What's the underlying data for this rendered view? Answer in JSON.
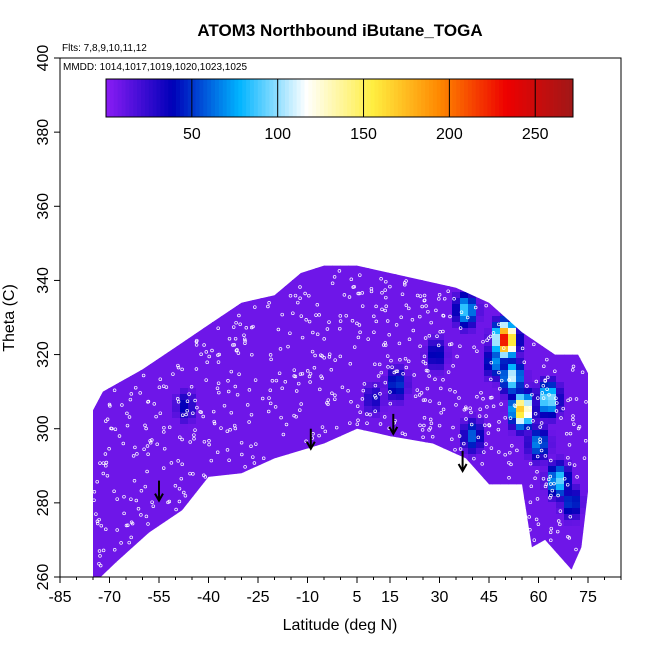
{
  "chart_data": {
    "type": "heatmap",
    "title": "ATOM3 Northbound iButane_TOGA",
    "flights_note": "Flts: 7,8,9,10,11,12",
    "dates_note": "MMDD: 1014,1017,1019,1020,1023,1025",
    "xlabel": "Latitude (deg N)",
    "ylabel": "Theta (C)",
    "xlim": [
      -85,
      85
    ],
    "ylim": [
      260,
      400
    ],
    "x_ticks": [
      -85,
      -70,
      -55,
      -40,
      -25,
      -10,
      5,
      15,
      30,
      45,
      60,
      75
    ],
    "x_tick_labels": [
      "-85",
      "-70",
      "-55",
      "-40",
      "-25",
      "-10",
      "5",
      "15",
      "30",
      "45",
      "60",
      "75"
    ],
    "y_ticks": [
      260,
      280,
      300,
      320,
      340,
      360,
      380,
      400
    ],
    "y_tick_labels": [
      "260",
      "280",
      "300",
      "320",
      "340",
      "360",
      "380",
      "400"
    ],
    "colorbar": {
      "range": [
        0,
        272
      ],
      "ticks": [
        50,
        100,
        150,
        200,
        250
      ],
      "tick_labels": [
        "50",
        "100",
        "150",
        "200",
        "250"
      ],
      "colors": [
        "#8b1cf5",
        "#0000b8",
        "#00b4ff",
        "#ffffff",
        "#ffee40",
        "#ff8800",
        "#ee0000",
        "#a01818"
      ]
    },
    "background_value": 8,
    "data_envelope": {
      "top": [
        [
          -75,
          305
        ],
        [
          -72,
          310
        ],
        [
          -60,
          316
        ],
        [
          -50,
          322
        ],
        [
          -40,
          328
        ],
        [
          -30,
          334
        ],
        [
          -20,
          336
        ],
        [
          -12,
          342
        ],
        [
          -5,
          344
        ],
        [
          5,
          344
        ],
        [
          15,
          342
        ],
        [
          25,
          340
        ],
        [
          35,
          338
        ],
        [
          45,
          334
        ],
        [
          55,
          326
        ],
        [
          65,
          320
        ],
        [
          72,
          320
        ],
        [
          75,
          315
        ]
      ],
      "bottom": [
        [
          75,
          283
        ],
        [
          73,
          268
        ],
        [
          70,
          262
        ],
        [
          62,
          270
        ],
        [
          58,
          268
        ],
        [
          55,
          285
        ],
        [
          45,
          285
        ],
        [
          38,
          292
        ],
        [
          28,
          296
        ],
        [
          15,
          298
        ],
        [
          5,
          300
        ],
        [
          -5,
          296
        ],
        [
          -20,
          292
        ],
        [
          -30,
          288
        ],
        [
          -40,
          287
        ],
        [
          -48,
          278
        ],
        [
          -58,
          272
        ],
        [
          -68,
          264
        ],
        [
          -75,
          258
        ]
      ]
    },
    "features": [
      {
        "lat": -47,
        "theta": 306,
        "value": 40
      },
      {
        "lat": 10,
        "theta": 308,
        "value": 35
      },
      {
        "lat": 17,
        "theta": 312,
        "value": 55
      },
      {
        "lat": 29,
        "theta": 320,
        "value": 45
      },
      {
        "lat": 38,
        "theta": 332,
        "value": 90
      },
      {
        "lat": 40,
        "theta": 298,
        "value": 60
      },
      {
        "lat": 47,
        "theta": 318,
        "value": 70
      },
      {
        "lat": 50,
        "theta": 324,
        "value": 238
      },
      {
        "lat": 52,
        "theta": 314,
        "value": 110
      },
      {
        "lat": 55,
        "theta": 305,
        "value": 175
      },
      {
        "lat": 60,
        "theta": 296,
        "value": 70
      },
      {
        "lat": 63,
        "theta": 308,
        "value": 110
      },
      {
        "lat": 66,
        "theta": 286,
        "value": 95
      },
      {
        "lat": 70,
        "theta": 280,
        "value": 55
      }
    ],
    "arrows": [
      {
        "lat": -55,
        "theta": 286
      },
      {
        "lat": -9,
        "theta": 300
      },
      {
        "lat": 16,
        "theta": 304
      },
      {
        "lat": 37,
        "theta": 294
      }
    ]
  }
}
